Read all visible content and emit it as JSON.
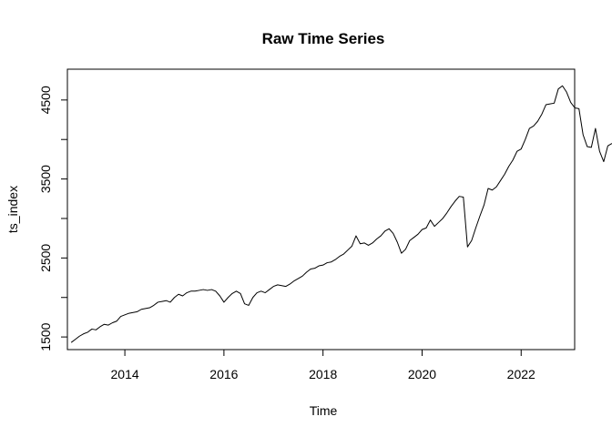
{
  "chart_data": {
    "type": "line",
    "title": "Raw Time Series",
    "xlabel": "Time",
    "ylabel": "ts_index",
    "xlim": [
      2012.84,
      2023.08
    ],
    "ylim": [
      1340,
      4890
    ],
    "x_ticks": [
      2014,
      2016,
      2018,
      2020,
      2022
    ],
    "x_tick_labels": [
      "2014",
      "2016",
      "2018",
      "2020",
      "2022"
    ],
    "y_ticks": [
      1500,
      2000,
      2500,
      3000,
      3500,
      4000,
      4500
    ],
    "y_tick_labels": [
      "1500",
      "",
      "2500",
      "",
      "3500",
      "",
      "4500"
    ],
    "grid": false,
    "legend": "none",
    "series": [
      {
        "color": "#000000",
        "x_start": 2012.917,
        "x_step": 0.08333,
        "values": [
          1430,
          1470,
          1510,
          1540,
          1560,
          1600,
          1590,
          1630,
          1660,
          1650,
          1680,
          1700,
          1760,
          1780,
          1800,
          1810,
          1820,
          1850,
          1860,
          1870,
          1900,
          1940,
          1950,
          1960,
          1940,
          2000,
          2040,
          2020,
          2060,
          2080,
          2080,
          2090,
          2100,
          2090,
          2100,
          2080,
          2020,
          1940,
          2000,
          2050,
          2080,
          2050,
          1920,
          1900,
          2000,
          2060,
          2080,
          2060,
          2100,
          2140,
          2160,
          2150,
          2140,
          2170,
          2210,
          2240,
          2270,
          2320,
          2360,
          2370,
          2400,
          2410,
          2440,
          2450,
          2480,
          2520,
          2550,
          2600,
          2650,
          2780,
          2680,
          2690,
          2660,
          2690,
          2740,
          2780,
          2840,
          2870,
          2810,
          2700,
          2560,
          2610,
          2720,
          2760,
          2800,
          2860,
          2880,
          2980,
          2900,
          2950,
          3000,
          3070,
          3150,
          3220,
          3280,
          3270,
          2640,
          2720,
          2880,
          3030,
          3170,
          3380,
          3360,
          3400,
          3480,
          3560,
          3660,
          3740,
          3850,
          3880,
          4000,
          4140,
          4170,
          4230,
          4320,
          4440,
          4450,
          4460,
          4640,
          4680,
          4600,
          4470,
          4400,
          4390,
          4060,
          3910,
          3900,
          4140,
          3850,
          3720,
          3920,
          3950
        ]
      }
    ]
  }
}
